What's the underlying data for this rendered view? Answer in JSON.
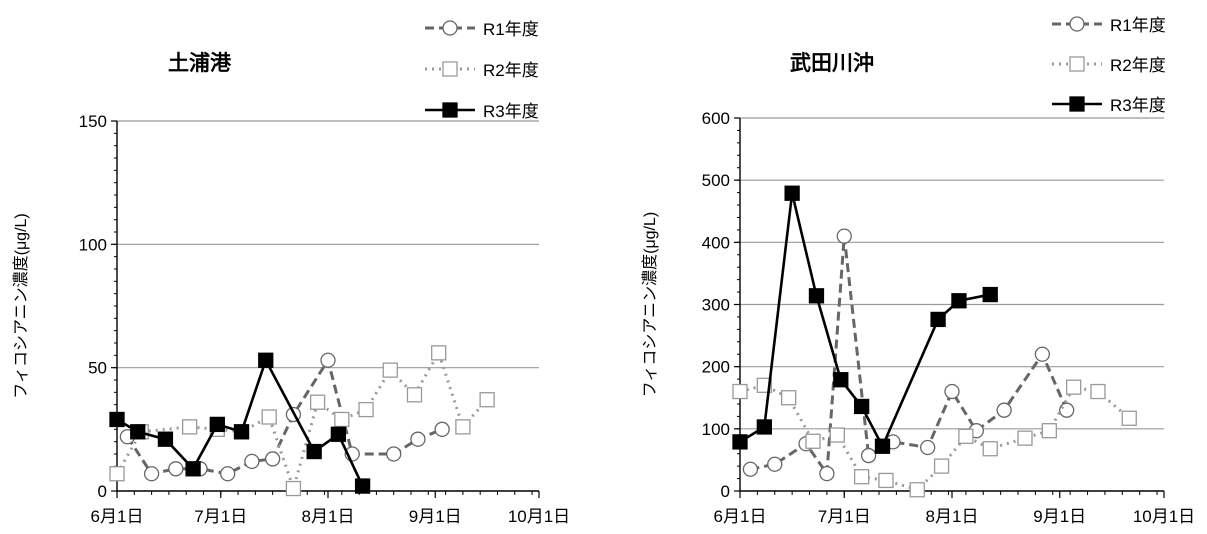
{
  "chart_data": [
    {
      "type": "line",
      "title": "土浦港",
      "ylabel": "フィコシアニン濃度(μg/L)",
      "xlabel": "",
      "xlim": [
        "06-01",
        "10-01"
      ],
      "ylim": [
        0,
        150
      ],
      "x_ticks": [
        "6月1日",
        "7月1日",
        "8月1日",
        "9月1日",
        "10月1日"
      ],
      "x_tick_dates": [
        "06-01",
        "07-01",
        "08-01",
        "09-01",
        "10-01"
      ],
      "y_ticks": [
        0,
        50,
        100,
        150
      ],
      "grid": "horizontal",
      "legend_position": "top-right",
      "series": [
        {
          "name": "R1年度",
          "style": "dashed-circle",
          "color": "#666666",
          "points": [
            [
              "06-04",
              22
            ],
            [
              "06-11",
              7
            ],
            [
              "06-18",
              9
            ],
            [
              "06-25",
              9
            ],
            [
              "07-03",
              7
            ],
            [
              "07-10",
              12
            ],
            [
              "07-16",
              13
            ],
            [
              "07-22",
              31
            ],
            [
              "08-01",
              53
            ],
            [
              "08-08",
              15
            ],
            [
              "08-20",
              15
            ],
            [
              "08-27",
              21
            ],
            [
              "09-03",
              25
            ]
          ]
        },
        {
          "name": "R2年度",
          "style": "dotted-square",
          "color": "#999999",
          "points": [
            [
              "06-01",
              7
            ],
            [
              "06-08",
              24
            ],
            [
              "06-22",
              26
            ],
            [
              "06-30",
              25
            ],
            [
              "07-07",
              24
            ],
            [
              "07-15",
              30
            ],
            [
              "07-22",
              1
            ],
            [
              "07-29",
              36
            ],
            [
              "08-05",
              29
            ],
            [
              "08-12",
              33
            ],
            [
              "08-19",
              49
            ],
            [
              "08-26",
              39
            ],
            [
              "09-02",
              56
            ],
            [
              "09-09",
              26
            ],
            [
              "09-16",
              37
            ]
          ]
        },
        {
          "name": "R3年度",
          "style": "solid-filled-square",
          "color": "#000000",
          "points": [
            [
              "06-01",
              29
            ],
            [
              "06-07",
              24
            ],
            [
              "06-15",
              21
            ],
            [
              "06-23",
              9
            ],
            [
              "06-30",
              27
            ],
            [
              "07-07",
              24
            ],
            [
              "07-14",
              53
            ],
            [
              "07-28",
              16
            ],
            [
              "08-04",
              23
            ],
            [
              "08-11",
              2
            ]
          ]
        }
      ]
    },
    {
      "type": "line",
      "title": "武田川沖",
      "ylabel": "フィコシアニン濃度(μg/L)",
      "xlabel": "",
      "xlim": [
        "06-01",
        "10-01"
      ],
      "ylim": [
        0,
        600
      ],
      "x_ticks": [
        "6月1日",
        "7月1日",
        "8月1日",
        "9月1日",
        "10月1日"
      ],
      "x_tick_dates": [
        "06-01",
        "07-01",
        "08-01",
        "09-01",
        "10-01"
      ],
      "y_ticks": [
        0,
        100,
        200,
        300,
        400,
        500,
        600
      ],
      "grid": "horizontal",
      "legend_position": "top-right",
      "series": [
        {
          "name": "R1年度",
          "style": "dashed-circle",
          "color": "#666666",
          "points": [
            [
              "06-04",
              35
            ],
            [
              "06-11",
              43
            ],
            [
              "06-20",
              76
            ],
            [
              "06-26",
              28
            ],
            [
              "07-01",
              410
            ],
            [
              "07-08",
              57
            ],
            [
              "07-15",
              79
            ],
            [
              "07-25",
              70
            ],
            [
              "08-01",
              160
            ],
            [
              "08-08",
              97
            ],
            [
              "08-16",
              130
            ],
            [
              "08-27",
              220
            ],
            [
              "09-03",
              130
            ]
          ]
        },
        {
          "name": "R2年度",
          "style": "dotted-square",
          "color": "#999999",
          "points": [
            [
              "06-01",
              160
            ],
            [
              "06-08",
              170
            ],
            [
              "06-15",
              150
            ],
            [
              "06-22",
              80
            ],
            [
              "06-29",
              90
            ],
            [
              "07-06",
              23
            ],
            [
              "07-13",
              17
            ],
            [
              "07-22",
              2
            ],
            [
              "07-29",
              40
            ],
            [
              "08-05",
              88
            ],
            [
              "08-12",
              68
            ],
            [
              "08-22",
              85
            ],
            [
              "08-29",
              97
            ],
            [
              "09-05",
              167
            ],
            [
              "09-12",
              160
            ],
            [
              "09-21",
              117
            ]
          ]
        },
        {
          "name": "R3年度",
          "style": "solid-filled-square",
          "color": "#000000",
          "points": [
            [
              "06-01",
              79
            ],
            [
              "06-08",
              103
            ],
            [
              "06-16",
              479
            ],
            [
              "06-23",
              314
            ],
            [
              "06-30",
              179
            ],
            [
              "07-06",
              136
            ],
            [
              "07-12",
              72
            ],
            [
              "07-28",
              276
            ],
            [
              "08-03",
              306
            ],
            [
              "08-12",
              316
            ]
          ]
        }
      ]
    }
  ]
}
